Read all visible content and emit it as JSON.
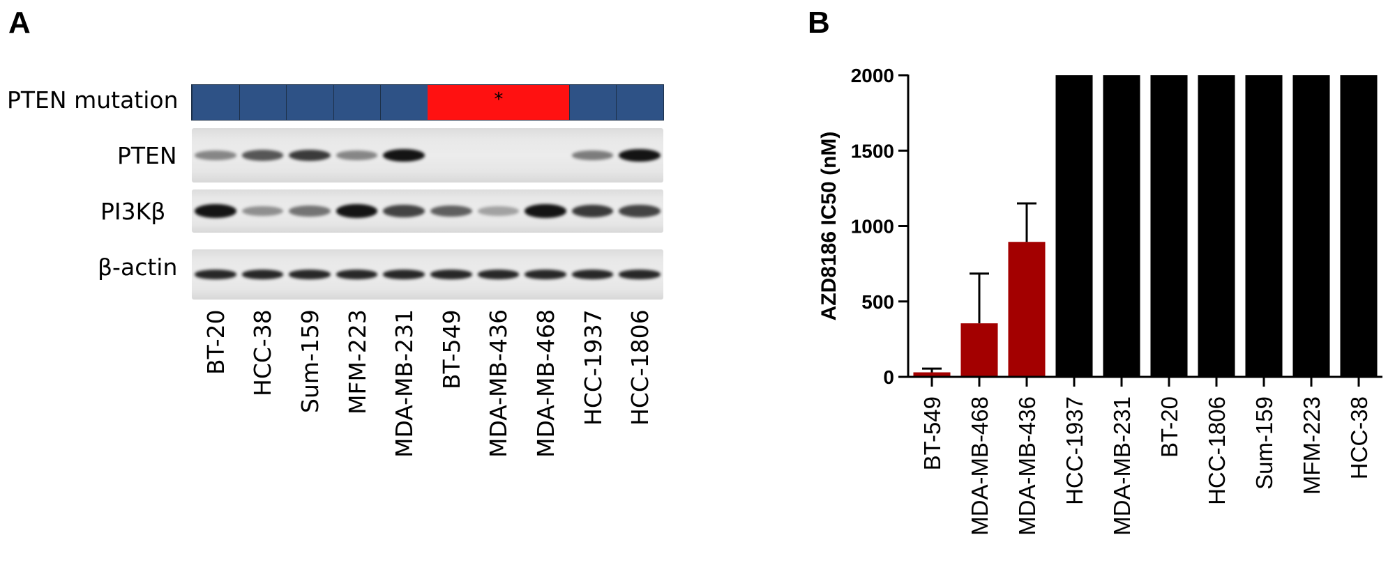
{
  "panel_a": {
    "letter": "A",
    "rows": {
      "mutation": "PTEN mutation",
      "pten": "PTEN",
      "pi3k": "PI3Kβ",
      "actin": "β-actin"
    },
    "cell_lines": [
      "BT-20",
      "HCC-38",
      "Sum-159",
      "MFM-223",
      "MDA-MB-231",
      "BT-549",
      "MDA-MB-436",
      "MDA-MB-468",
      "HCC-1937",
      "HCC-1806"
    ],
    "pten_mutated": [
      false,
      false,
      false,
      false,
      false,
      true,
      true,
      true,
      false,
      false
    ],
    "mutation_marker_lane": 6,
    "mutation_marker": "*",
    "colors": {
      "wild_type": "#2e5286",
      "mutant": "#ff1111"
    },
    "band_strength": {
      "pten": [
        0.35,
        0.6,
        0.75,
        0.35,
        0.95,
        0,
        0,
        0,
        0.4,
        0.95
      ],
      "pi3k": [
        0.95,
        0.3,
        0.45,
        0.95,
        0.7,
        0.55,
        0.2,
        0.95,
        0.75,
        0.7
      ],
      "actin": [
        0.85,
        0.85,
        0.85,
        0.85,
        0.85,
        0.85,
        0.85,
        0.85,
        0.85,
        0.85
      ]
    }
  },
  "panel_b": {
    "letter": "B"
  },
  "chart_data": {
    "type": "bar",
    "title": "",
    "xlabel": "",
    "ylabel": "AZD8186 IC50 (nM)",
    "ylim": [
      0,
      2000
    ],
    "yticks": [
      "0",
      "500",
      "1000",
      "1500",
      "2000"
    ],
    "categories": [
      "BT-549",
      "MDA-MB-468",
      "MDA-MB-436",
      "HCC-1937",
      "MDA-MB-231",
      "BT-20",
      "HCC-1806",
      "Sum-159",
      "MFM-223",
      "HCC-38"
    ],
    "values": [
      30,
      355,
      895,
      2000,
      2000,
      2000,
      2000,
      2000,
      2000,
      2000
    ],
    "error_upper": [
      25,
      330,
      255,
      0,
      0,
      0,
      0,
      0,
      0,
      0
    ],
    "bar_colors": [
      "#a30000",
      "#a30000",
      "#a30000",
      "#000000",
      "#000000",
      "#000000",
      "#000000",
      "#000000",
      "#000000",
      "#000000"
    ],
    "grid": false,
    "legend": "none"
  }
}
